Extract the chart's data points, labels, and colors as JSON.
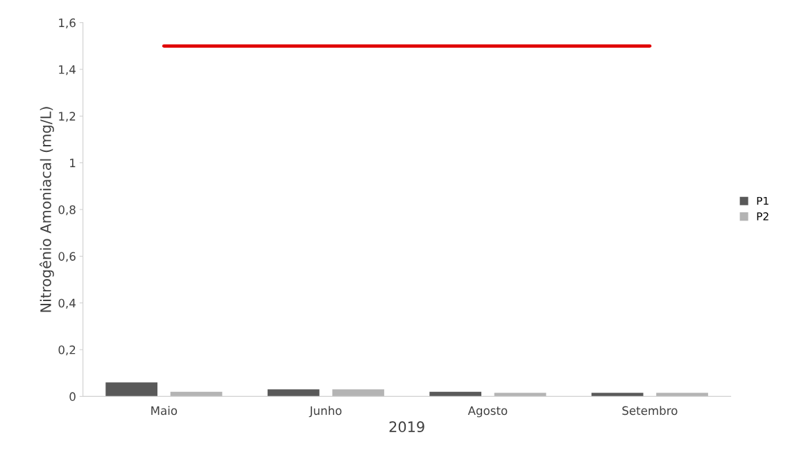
{
  "chart_data": {
    "type": "bar",
    "xlabel": "2019",
    "ylabel": "Nitrogênio Amoniacal (mg/L)",
    "categories": [
      "Maio",
      "Junho",
      "Agosto",
      "Setembro"
    ],
    "series": [
      {
        "name": "P1",
        "color": "#595959",
        "values": [
          0.06,
          0.03,
          0.02,
          0.015
        ]
      },
      {
        "name": "P2",
        "color": "#b4b4b4",
        "values": [
          0.02,
          0.03,
          0.015,
          0.015
        ]
      },
      {
        "type": "line",
        "color": "#e00000",
        "values": [
          1.5,
          1.5,
          1.5,
          1.5
        ]
      }
    ],
    "ylim": [
      0,
      1.6
    ],
    "yticks": [
      {
        "value": 0,
        "label": "0"
      },
      {
        "value": 0.2,
        "label": "0,2"
      },
      {
        "value": 0.4,
        "label": "0,4"
      },
      {
        "value": 0.6,
        "label": "0,6"
      },
      {
        "value": 0.8,
        "label": "0,8"
      },
      {
        "value": 1,
        "label": "1"
      },
      {
        "value": 1.2,
        "label": "1,2"
      },
      {
        "value": 1.4,
        "label": "1,4"
      },
      {
        "value": 1.6,
        "label": "1,6"
      }
    ],
    "grid": false,
    "legend": "right"
  }
}
